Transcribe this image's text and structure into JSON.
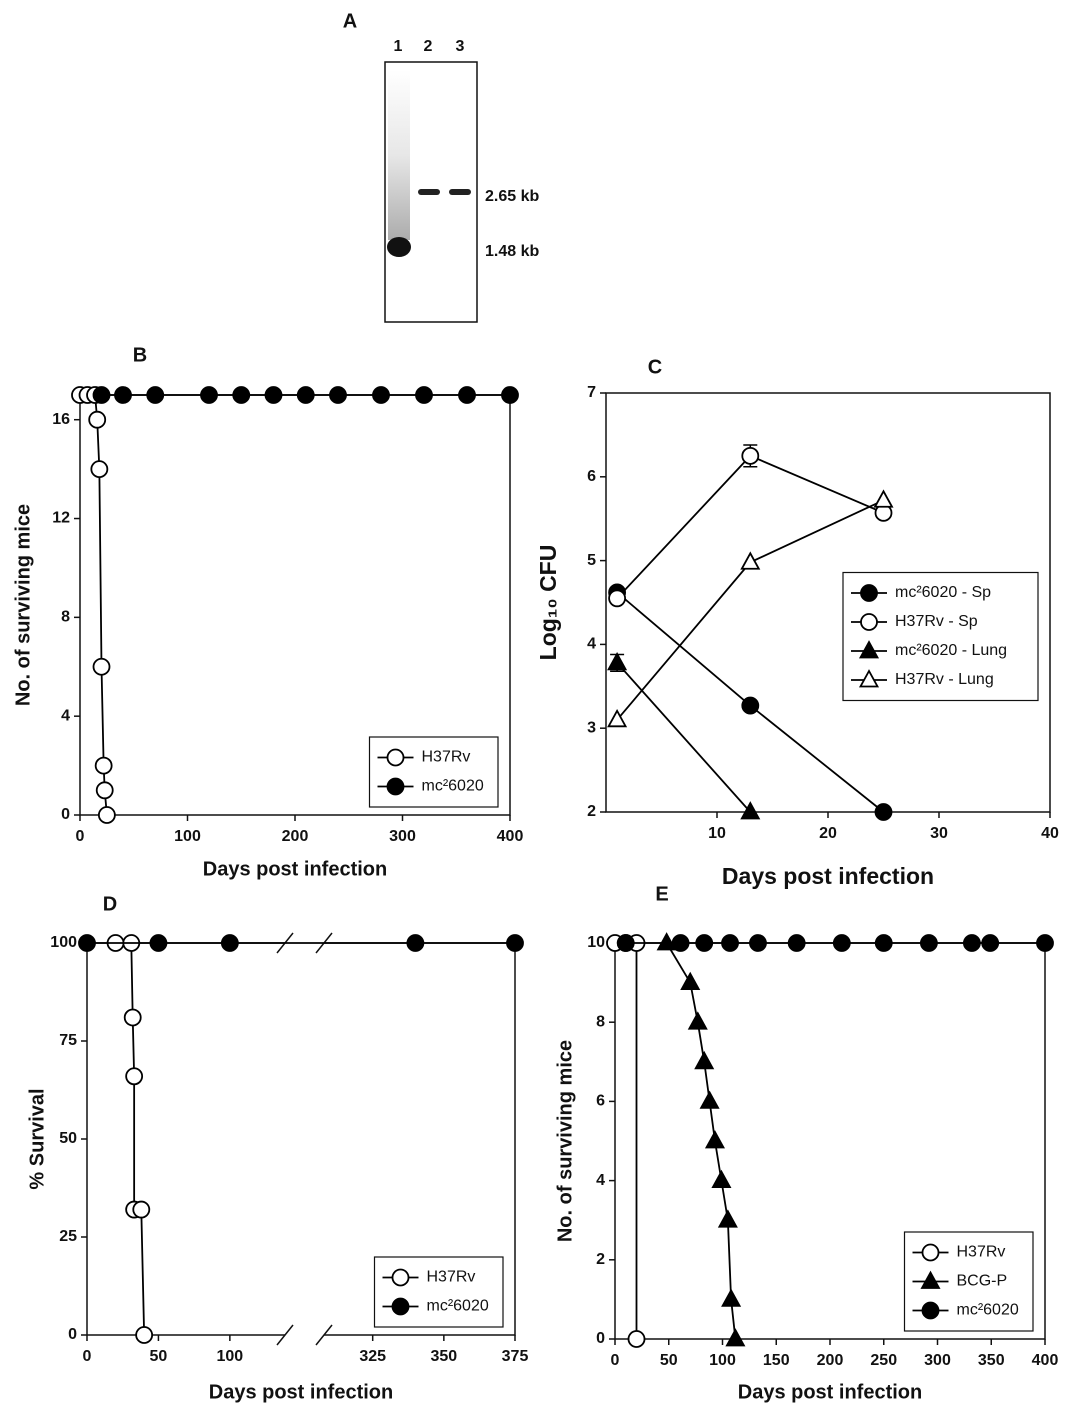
{
  "blot": {
    "label": "A",
    "lanes": [
      "1",
      "2",
      "3"
    ],
    "sizes": [
      "2.65 kb",
      "1.48 kb"
    ]
  },
  "chart_data": [
    {
      "type": "line",
      "title": "B",
      "xlabel": "Days post infection",
      "ylabel": "No. of surviving mice",
      "xlim": [
        0,
        400
      ],
      "xticks": [
        0,
        100,
        200,
        300,
        400
      ],
      "ylim": [
        0,
        17
      ],
      "yticks": [
        0,
        4,
        8,
        12,
        16
      ],
      "legend": "lower right",
      "series": [
        {
          "name": "H37Rv",
          "color": "#000000",
          "marker": "circle",
          "filled": false,
          "x": [
            0,
            7,
            14,
            16,
            18,
            20,
            22,
            23,
            25
          ],
          "values": [
            17,
            17,
            17,
            16,
            14,
            6,
            2,
            1,
            0
          ]
        },
        {
          "name": "mc²6020",
          "color": "#000000",
          "marker": "circle",
          "filled": true,
          "x": [
            20,
            40,
            70,
            120,
            150,
            180,
            210,
            240,
            280,
            320,
            360,
            400
          ],
          "values": [
            17,
            17,
            17,
            17,
            17,
            17,
            17,
            17,
            17,
            17,
            17,
            17
          ]
        }
      ]
    },
    {
      "type": "line",
      "title": "C",
      "xlabel": "Days post infection",
      "ylabel": "Log₁₀ CFU",
      "xlim": [
        0,
        40
      ],
      "xticks": [
        10,
        20,
        30,
        40
      ],
      "ylim": [
        2,
        7
      ],
      "yticks": [
        2,
        3,
        4,
        5,
        6,
        7
      ],
      "legend": "center right",
      "series": [
        {
          "name": "mc²6020 - Sp",
          "color": "#000000",
          "marker": "circle",
          "filled": true,
          "x": [
            1,
            13,
            25
          ],
          "values": [
            4.62,
            3.27,
            2.0
          ]
        },
        {
          "name": "H37Rv - Sp",
          "color": "#000000",
          "marker": "circle",
          "filled": false,
          "x": [
            1,
            13,
            25
          ],
          "values": [
            4.55,
            6.25,
            5.57
          ],
          "errors": [
            null,
            0.13,
            null
          ]
        },
        {
          "name": "mc²6020 - Lung",
          "color": "#000000",
          "marker": "triangle",
          "filled": true,
          "x": [
            1,
            13
          ],
          "values": [
            3.78,
            2.0
          ],
          "errors": [
            0.1,
            null
          ]
        },
        {
          "name": "H37Rv - Lung",
          "color": "#000000",
          "marker": "triangle",
          "filled": false,
          "x": [
            1,
            13,
            25
          ],
          "values": [
            3.1,
            4.98,
            5.72
          ]
        }
      ]
    },
    {
      "type": "line",
      "title": "D",
      "xlabel": "Days post infection",
      "ylabel": "% Survival",
      "xlim": [
        0,
        375
      ],
      "xbreak": [
        140,
        310
      ],
      "xticks": [
        0,
        50,
        100,
        325,
        350,
        375
      ],
      "ylim": [
        0,
        100
      ],
      "yticks": [
        0,
        25,
        50,
        75,
        100
      ],
      "legend": "lower right",
      "series": [
        {
          "name": "H37Rv",
          "color": "#000000",
          "marker": "circle",
          "filled": false,
          "x": [
            20,
            31,
            32,
            33,
            33,
            38,
            40
          ],
          "values": [
            100,
            100,
            81,
            66,
            32,
            32,
            0
          ]
        },
        {
          "name": "mc²6020",
          "color": "#000000",
          "marker": "circle",
          "filled": true,
          "x": [
            0,
            50,
            100,
            340,
            375
          ],
          "values": [
            100,
            100,
            100,
            100,
            100
          ]
        }
      ]
    },
    {
      "type": "line",
      "title": "E",
      "xlabel": "Days post infection",
      "ylabel": "No. of surviving mice",
      "xlim": [
        0,
        400
      ],
      "xticks": [
        0,
        50,
        100,
        150,
        200,
        250,
        300,
        350,
        400
      ],
      "ylim": [
        0,
        10
      ],
      "yticks": [
        0,
        2,
        4,
        6,
        8,
        10
      ],
      "legend": "lower right",
      "series": [
        {
          "name": "H37Rv",
          "color": "#000000",
          "marker": "circle",
          "filled": false,
          "x": [
            0,
            10,
            20,
            20
          ],
          "values": [
            10,
            10,
            10,
            0
          ]
        },
        {
          "name": "BCG-P",
          "color": "#000000",
          "marker": "triangle",
          "filled": true,
          "x": [
            48,
            70,
            77,
            83,
            88,
            93,
            99,
            105,
            108,
            112
          ],
          "values": [
            10,
            9,
            8,
            7,
            6,
            5,
            4,
            3,
            1,
            0
          ]
        },
        {
          "name": "mc²6020",
          "color": "#000000",
          "marker": "circle",
          "filled": true,
          "x": [
            10,
            61,
            83,
            107,
            133,
            169,
            211,
            250,
            292,
            332,
            349,
            400
          ],
          "values": [
            10,
            10,
            10,
            10,
            10,
            10,
            10,
            10,
            10,
            10,
            10,
            10
          ]
        }
      ]
    }
  ]
}
